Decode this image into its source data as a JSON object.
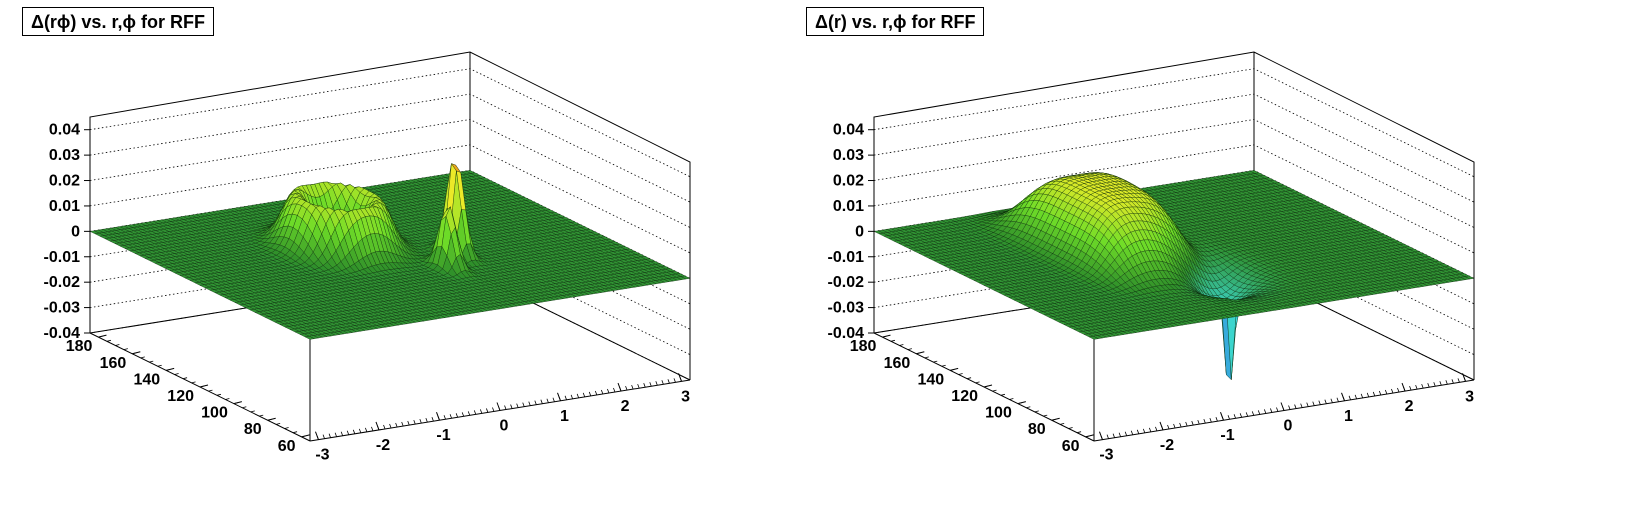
{
  "colors": {
    "surface_base": "#2f8f2a",
    "surface_grid": "#0a2a0a",
    "frame": "#000000"
  },
  "chart_data": [
    {
      "type": "surface3d",
      "title": "Δ(rϕ) vs. r,ϕ for RFF",
      "xlabel": "",
      "ylabel": "",
      "zlabel": "",
      "x_axis": {
        "ticks": [
          "-3",
          "-2",
          "-1",
          "0",
          "1",
          "2",
          "3"
        ],
        "range": [
          -3.14,
          3.14
        ]
      },
      "y_axis": {
        "ticks": [
          "60",
          "80",
          "100",
          "120",
          "140",
          "160",
          "180"
        ],
        "range": [
          55,
          185
        ]
      },
      "z_axis": {
        "ticks": [
          "-0.04",
          "-0.03",
          "-0.02",
          "-0.01",
          "0",
          "0.01",
          "0.02",
          "0.03",
          "0.04"
        ],
        "range": [
          -0.04,
          0.045
        ]
      },
      "grid": true,
      "features": [
        {
          "kind": "flat-plane",
          "z": 0.0
        },
        {
          "kind": "raised-arc",
          "x_range": [
            -1.2,
            0.3
          ],
          "y_center": 135,
          "z_peak": 0.02
        },
        {
          "kind": "spike",
          "x": 0.4,
          "y": 100,
          "z_peak": 0.025
        },
        {
          "kind": "spike",
          "x": 0.8,
          "y": 110,
          "z_peak": 0.04
        }
      ]
    },
    {
      "type": "surface3d",
      "title": "Δ(r) vs. r,ϕ for RFF",
      "xlabel": "",
      "ylabel": "",
      "zlabel": "",
      "x_axis": {
        "ticks": [
          "-3",
          "-2",
          "-1",
          "0",
          "1",
          "2",
          "3"
        ],
        "range": [
          -3.14,
          3.14
        ]
      },
      "y_axis": {
        "ticks": [
          "60",
          "80",
          "100",
          "120",
          "140",
          "160",
          "180"
        ],
        "range": [
          55,
          185
        ]
      },
      "z_axis": {
        "ticks": [
          "-0.04",
          "-0.03",
          "-0.02",
          "-0.01",
          "0",
          "0.01",
          "0.02",
          "0.03",
          "0.04"
        ],
        "range": [
          -0.04,
          0.045
        ]
      },
      "grid": true,
      "features": [
        {
          "kind": "flat-plane",
          "z": 0.0
        },
        {
          "kind": "raised-plateau",
          "x_range": [
            -1.5,
            0.2
          ],
          "y_range": [
            100,
            170
          ],
          "z_peak": 0.025
        },
        {
          "kind": "dip",
          "x": 0.0,
          "y": 100,
          "z_min": -0.015
        },
        {
          "kind": "spike-down",
          "x": -0.2,
          "y": 80,
          "z_min": -0.04
        }
      ]
    }
  ]
}
